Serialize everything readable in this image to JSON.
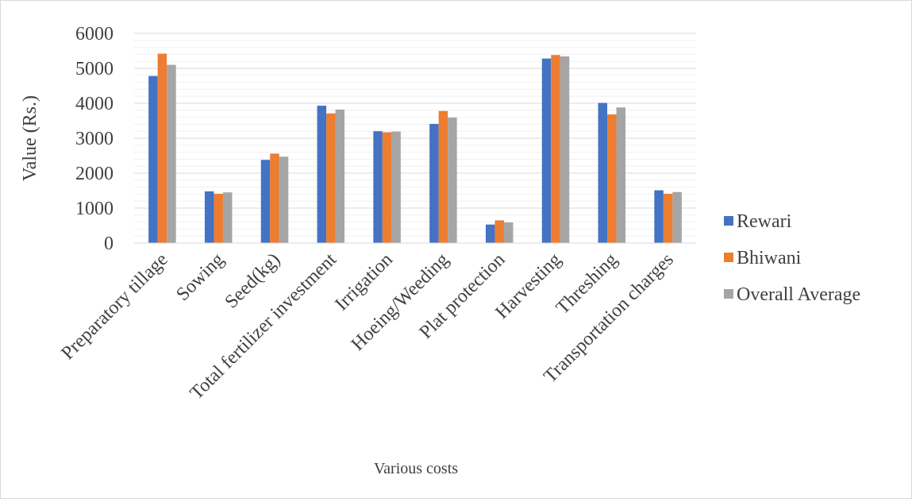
{
  "chart_data": {
    "type": "bar",
    "title": "",
    "xlabel": "Various costs",
    "ylabel": "Value (Rs.)",
    "ylim": [
      0,
      6000
    ],
    "yticks": [
      0,
      1000,
      2000,
      3000,
      4000,
      5000,
      6000
    ],
    "grid": true,
    "legend_position": "right",
    "categories": [
      "Preparatory tillage",
      "Sowing",
      "Seed(kg)",
      "Total fertilizer investment",
      "Irrigation",
      "Hoeing/Weeding",
      "Plat protection",
      "Harvesting",
      "Threshing",
      "Transportation charges"
    ],
    "series": [
      {
        "name": "Rewari",
        "color": "#4472C4",
        "values": [
          4780,
          1480,
          2380,
          3930,
          3200,
          3410,
          530,
          5280,
          4010,
          1510
        ]
      },
      {
        "name": "Bhiwani",
        "color": "#ED7D31",
        "values": [
          5420,
          1410,
          2560,
          3710,
          3170,
          3780,
          650,
          5380,
          3680,
          1410
        ]
      },
      {
        "name": "Overall Average",
        "color": "#A5A5A5",
        "values": [
          5100,
          1450,
          2470,
          3820,
          3190,
          3590,
          590,
          5340,
          3880,
          1460
        ]
      }
    ]
  }
}
